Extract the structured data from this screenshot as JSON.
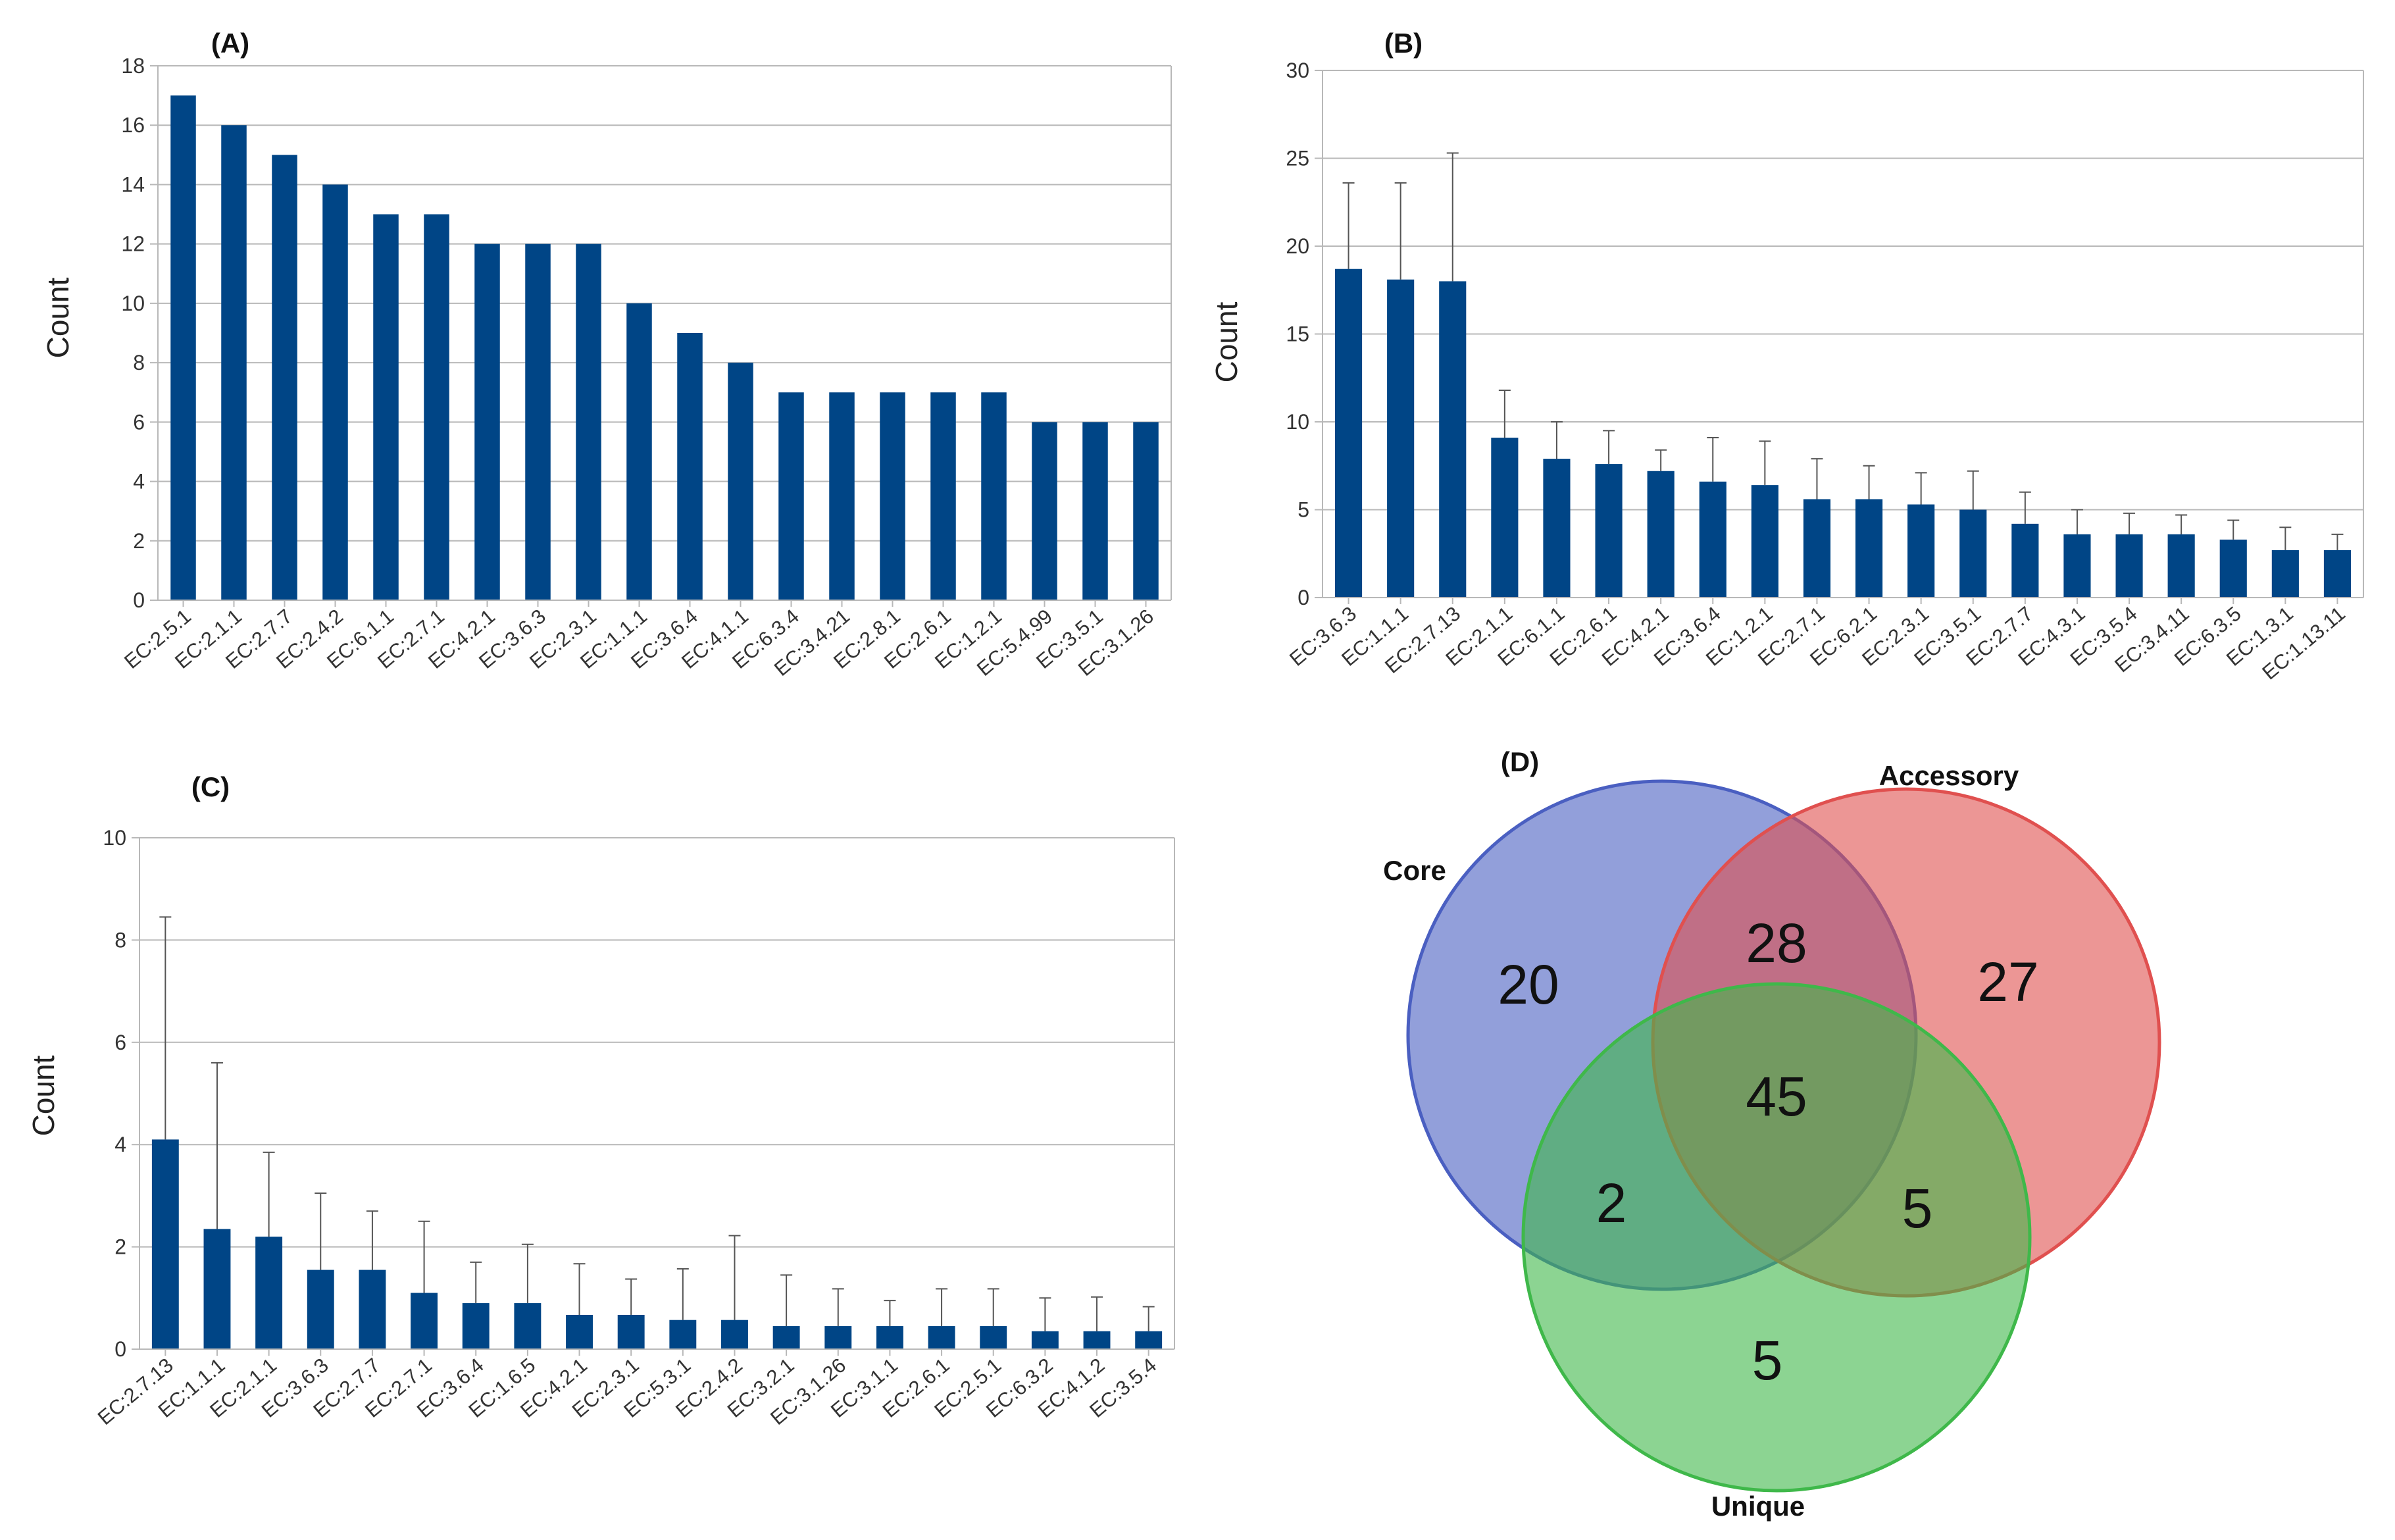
{
  "bar_color": "#004586",
  "venn_colors": {
    "Core": "#4a5fc1",
    "Accessory": "#e0504f",
    "Unique": "#3fb84a"
  },
  "chart_data": [
    {
      "panel": "(A)",
      "type": "bar",
      "ylabel": "Count",
      "ylim": [
        0,
        18
      ],
      "yticks": [
        0,
        2,
        4,
        6,
        8,
        10,
        12,
        14,
        16,
        18
      ],
      "grid": true,
      "categories": [
        "EC:2.5.1",
        "EC:2.1.1",
        "EC:2.7.7",
        "EC:2.4.2",
        "EC:6.1.1",
        "EC:2.7.1",
        "EC:4.2.1",
        "EC:3.6.3",
        "EC:2.3.1",
        "EC:1.1.1",
        "EC:3.6.4",
        "EC:4.1.1",
        "EC:6.3.4",
        "EC:3.4.21",
        "EC:2.8.1",
        "EC:2.6.1",
        "EC:1.2.1",
        "EC:5.4.99",
        "EC:3.5.1",
        "EC:3.1.26"
      ],
      "values": [
        17,
        16,
        15,
        14,
        13,
        13,
        12,
        12,
        12,
        10,
        9,
        8,
        7,
        7,
        7,
        7,
        7,
        6,
        6,
        6
      ]
    },
    {
      "panel": "(B)",
      "type": "bar",
      "ylabel": "Count",
      "ylim": [
        0,
        30
      ],
      "yticks": [
        0,
        5,
        10,
        15,
        20,
        25,
        30
      ],
      "grid": true,
      "error_bars": true,
      "categories": [
        "EC:3.6.3",
        "EC:1.1.1",
        "EC:2.7.13",
        "EC:2.1.1",
        "EC:6.1.1",
        "EC:2.6.1",
        "EC:4.2.1",
        "EC:3.6.4",
        "EC:1.2.1",
        "EC:2.7.1",
        "EC:6.2.1",
        "EC:2.3.1",
        "EC:3.5.1",
        "EC:2.7.7",
        "EC:4.3.1",
        "EC:3.5.4",
        "EC:3.4.11",
        "EC:6.3.5",
        "EC:1.3.1",
        "EC:1.13.11"
      ],
      "values": [
        18.7,
        18.1,
        18.0,
        9.1,
        7.9,
        7.6,
        7.2,
        6.6,
        6.4,
        5.6,
        5.6,
        5.3,
        5.0,
        4.2,
        3.6,
        3.6,
        3.6,
        3.3,
        2.7,
        2.7
      ],
      "errors": [
        4.9,
        5.5,
        7.3,
        2.7,
        2.1,
        1.9,
        1.2,
        2.5,
        2.5,
        2.3,
        1.9,
        1.8,
        2.2,
        1.8,
        1.4,
        1.2,
        1.1,
        1.1,
        1.3,
        0.9
      ]
    },
    {
      "panel": "(C)",
      "type": "bar",
      "ylabel": "Count",
      "ylim": [
        0,
        10
      ],
      "yticks": [
        0,
        2,
        4,
        6,
        8,
        10
      ],
      "grid": true,
      "error_bars": true,
      "categories": [
        "EC:2.7.13",
        "EC:1.1.1",
        "EC:2.1.1",
        "EC:3.6.3",
        "EC:2.7.7",
        "EC:2.7.1",
        "EC:3.6.4",
        "EC:1.6.5",
        "EC:4.2.1",
        "EC:2.3.1",
        "EC:5.3.1",
        "EC:2.4.2",
        "EC:3.2.1",
        "EC:3.1.26",
        "EC:3.1.1",
        "EC:2.6.1",
        "EC:2.5.1",
        "EC:6.3.2",
        "EC:4.1.2",
        "EC:3.5.4"
      ],
      "values": [
        4.1,
        2.35,
        2.2,
        1.55,
        1.55,
        1.1,
        0.9,
        0.9,
        0.67,
        0.67,
        0.57,
        0.57,
        0.45,
        0.45,
        0.45,
        0.45,
        0.45,
        0.35,
        0.35,
        0.35
      ],
      "errors": [
        4.35,
        3.25,
        1.65,
        1.5,
        1.15,
        1.4,
        0.8,
        1.15,
        1.0,
        0.7,
        1.0,
        1.65,
        1.0,
        0.73,
        0.5,
        0.73,
        0.73,
        0.65,
        0.67,
        0.48
      ]
    },
    {
      "panel": "(D)",
      "type": "venn",
      "sets": [
        "Core",
        "Accessory",
        "Unique"
      ],
      "regions": {
        "Core_only": 20,
        "Accessory_only": 27,
        "Unique_only": 5,
        "Core_Accessory": 28,
        "Core_Unique": 2,
        "Accessory_Unique": 5,
        "Core_Accessory_Unique": 45
      }
    }
  ]
}
